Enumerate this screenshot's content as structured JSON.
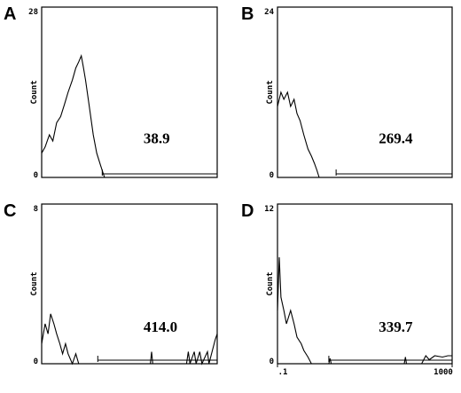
{
  "chart_data": [
    {
      "type": "line",
      "panel": "A",
      "y_label": "Count",
      "xscale": "log",
      "xlim": [
        0.1,
        1000
      ],
      "ylim": [
        0,
        28
      ],
      "yticks": [
        0,
        28
      ],
      "annotation": "38.9",
      "gate": [
        2.4,
        1000
      ],
      "color": "#000000",
      "x": [
        0.1,
        0.12,
        0.15,
        0.18,
        0.22,
        0.27,
        0.33,
        0.4,
        0.5,
        0.6,
        0.7,
        0.8,
        0.9,
        1.0,
        1.2,
        1.5,
        1.8,
        2.2,
        2.7
      ],
      "values": [
        4,
        5,
        7,
        6,
        9,
        10,
        12,
        14,
        16,
        18,
        19,
        20,
        18,
        16,
        12,
        7,
        4,
        2,
        0
      ]
    },
    {
      "type": "line",
      "panel": "B",
      "y_label": "Count",
      "xscale": "log",
      "xlim": [
        0.1,
        1000
      ],
      "ylim": [
        0,
        24
      ],
      "yticks": [
        0,
        24
      ],
      "annotation": "269.4",
      "gate": [
        2.2,
        1000
      ],
      "color": "#000000",
      "x": [
        0.1,
        0.12,
        0.14,
        0.17,
        0.2,
        0.24,
        0.28,
        0.33,
        0.4,
        0.5,
        0.6,
        0.7,
        0.8,
        0.9
      ],
      "values": [
        10,
        12,
        11,
        12,
        10,
        11,
        9,
        8,
        6,
        4,
        3,
        2,
        1,
        0
      ]
    },
    {
      "type": "line",
      "panel": "C",
      "y_label": "Count",
      "xscale": "log",
      "xlim": [
        0.1,
        1000
      ],
      "ylim": [
        0,
        8
      ],
      "yticks": [
        0,
        8
      ],
      "annotation": "414.0",
      "gate": [
        1.9,
        1000
      ],
      "color": "#000000",
      "x": [
        0.1,
        0.12,
        0.14,
        0.16,
        0.19,
        0.22,
        0.26,
        0.3,
        0.35,
        0.4,
        0.5,
        0.6,
        0.7,
        30,
        32,
        34,
        200,
        220,
        240,
        300,
        330,
        400,
        450,
        600,
        650,
        900,
        1000
      ],
      "values": [
        1,
        2,
        1.5,
        2.5,
        2,
        1.5,
        1,
        0.5,
        1,
        0.5,
        0,
        0.5,
        0,
        0,
        0.6,
        0,
        0,
        0.6,
        0,
        0.6,
        0,
        0.6,
        0,
        0.6,
        0,
        1.2,
        1.5
      ]
    },
    {
      "type": "line",
      "panel": "D",
      "y_label": "Count",
      "xscale": "log",
      "xlim": [
        0.1,
        1000
      ],
      "ylim": [
        0,
        12
      ],
      "yticks": [
        0,
        12
      ],
      "xticks": [
        {
          "value": 0.1,
          "label": ".1"
        },
        1000
      ],
      "annotation": "339.7",
      "gate": [
        1.5,
        1000
      ],
      "color": "#000000",
      "x": [
        0.1,
        0.11,
        0.12,
        0.14,
        0.16,
        0.2,
        0.24,
        0.28,
        0.35,
        0.4,
        0.5,
        0.6,
        1.5,
        1.6,
        1.7,
        80,
        85,
        90,
        200,
        250,
        300,
        400,
        600,
        800,
        1000
      ],
      "values": [
        4,
        8,
        5,
        4,
        3,
        4,
        3,
        2,
        1.5,
        1,
        0.5,
        0,
        0,
        0.4,
        0,
        0,
        0.5,
        0,
        0,
        0.6,
        0.3,
        0.6,
        0.5,
        0.6,
        0.6
      ]
    }
  ]
}
